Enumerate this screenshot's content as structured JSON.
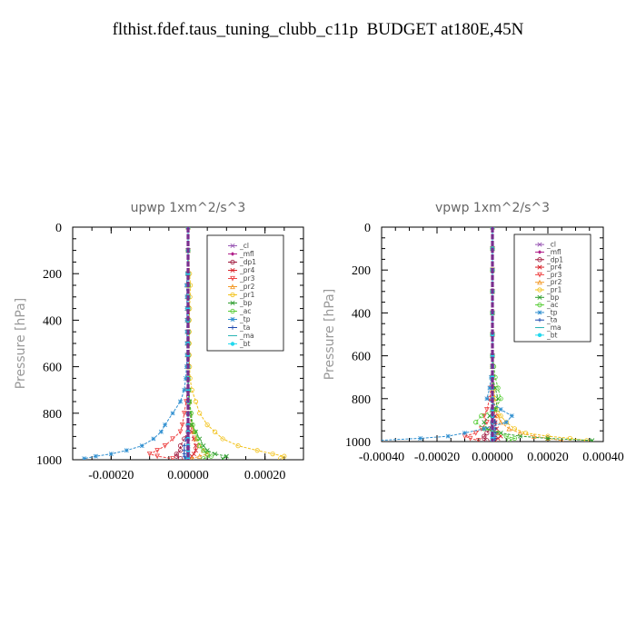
{
  "title": "flthist.fdef.taus_tuning_clubb_c11p  BUDGET at180E,45N",
  "ylabel": "Pressure  [hPa]",
  "legend_entries": [
    {
      "name": "_cl",
      "color": "#9a59b5",
      "marker": "x"
    },
    {
      "name": "_mfl",
      "color": "#b01f8a",
      "marker": "diamond"
    },
    {
      "name": "_dp1",
      "color": "#a0183c",
      "marker": "o"
    },
    {
      "name": "_pr4",
      "color": "#d8232a",
      "marker": "x"
    },
    {
      "name": "_pr3",
      "color": "#ee4444",
      "marker": "tri-down"
    },
    {
      "name": "_pr2",
      "color": "#f39a2a",
      "marker": "tri-up"
    },
    {
      "name": "_pr1",
      "color": "#f2c21b",
      "marker": "o"
    },
    {
      "name": "_bp",
      "color": "#2e9d2e",
      "marker": "x"
    },
    {
      "name": "_ac",
      "color": "#55cc33",
      "marker": "o"
    },
    {
      "name": "_tp",
      "color": "#2f8fd0",
      "marker": "star"
    },
    {
      "name": "_ta",
      "color": "#1f4bb0",
      "marker": "plus"
    },
    {
      "name": "_ma",
      "color": "#2bb5b5",
      "marker": "dash"
    },
    {
      "name": "_bt",
      "color": "#22d8ee",
      "marker": "dot"
    }
  ],
  "chart_data": [
    {
      "type": "line",
      "title": "upwp   1xm^2/s^3",
      "ylabel": "Pressure  [hPa]",
      "xlim": [
        -0.0003,
        0.0003
      ],
      "ylim": [
        1000,
        0
      ],
      "xticks": [
        -0.0002,
        0.0,
        0.0002
      ],
      "xticklabels": [
        "-0.00020",
        "0.00000",
        "0.00020"
      ],
      "yticks": [
        0,
        200,
        400,
        600,
        800,
        1000
      ],
      "yticklabels": [
        "0",
        "200",
        "400",
        "600",
        "800",
        "1000"
      ],
      "legend_position": "top-right",
      "y": [
        0,
        100,
        200,
        250,
        300,
        350,
        400,
        450,
        500,
        550,
        600,
        650,
        700,
        750,
        800,
        850,
        880,
        910,
        940,
        960,
        975,
        985,
        995
      ],
      "series": [
        {
          "name": "_cl",
          "values": [
            0,
            0,
            0,
            0,
            0,
            0,
            0,
            0,
            0,
            0,
            0,
            0,
            0,
            0,
            0,
            0,
            0,
            0,
            0,
            0,
            0,
            0,
            0
          ]
        },
        {
          "name": "_mfl",
          "values": [
            0,
            0,
            0,
            0,
            0,
            0,
            0,
            0,
            0,
            0,
            0,
            0,
            0,
            0,
            0,
            0,
            0,
            0,
            0,
            0,
            0,
            0,
            0
          ]
        },
        {
          "name": "_dp1",
          "values": [
            0,
            0,
            0,
            0,
            0,
            0,
            0,
            0,
            0,
            0,
            0,
            0,
            0,
            0,
            0,
            0,
            0,
            -1e-05,
            -2e-05,
            -2e-05,
            -3e-05,
            -3e-05,
            -2e-05
          ]
        },
        {
          "name": "_pr4",
          "values": [
            0,
            0,
            0,
            0,
            0,
            0,
            0,
            0,
            0,
            0,
            0,
            0,
            2e-06,
            4e-06,
            6e-06,
            8e-06,
            1e-05,
            1.5e-05,
            2e-05,
            2e-05,
            1.5e-05,
            1e-05,
            5e-06
          ]
        },
        {
          "name": "_pr3",
          "values": [
            0,
            0,
            0,
            0,
            0,
            0,
            0,
            0,
            0,
            0,
            0,
            0,
            -2e-06,
            -5e-06,
            -1e-05,
            -1.5e-05,
            -2e-05,
            -4e-05,
            -6e-05,
            -8e-05,
            -0.0001,
            -8e-05,
            -4e-05
          ]
        },
        {
          "name": "_pr2",
          "values": [
            0,
            0,
            0,
            0,
            0,
            0,
            0,
            0,
            0,
            0,
            0,
            0,
            2e-06,
            4e-06,
            6e-06,
            1e-05,
            1.5e-05,
            2e-05,
            3e-05,
            4e-05,
            5e-05,
            3e-05,
            1e-05
          ]
        },
        {
          "name": "_pr1",
          "values": [
            0,
            0,
            4e-06,
            6e-06,
            5e-06,
            4e-06,
            3e-06,
            3e-06,
            3e-06,
            3e-06,
            4e-06,
            5e-06,
            1e-05,
            2e-05,
            3e-05,
            5e-05,
            7e-05,
            9e-05,
            0.00013,
            0.00018,
            0.00022,
            0.00025,
            0.00024
          ]
        },
        {
          "name": "_bp",
          "values": [
            0,
            0,
            0,
            0,
            0,
            0,
            0,
            0,
            0,
            0,
            0,
            0,
            2e-06,
            4e-06,
            6e-06,
            1e-05,
            2e-05,
            3e-05,
            4e-05,
            5e-05,
            7e-05,
            0.0001,
            9e-05
          ]
        },
        {
          "name": "_ac",
          "values": [
            0,
            0,
            0,
            0,
            0,
            0,
            0,
            0,
            0,
            0,
            0,
            0,
            2e-06,
            4e-06,
            8e-06,
            1.2e-05,
            1.8e-05,
            2.5e-05,
            3e-05,
            4e-05,
            5e-05,
            6e-05,
            4e-05
          ]
        },
        {
          "name": "_tp",
          "values": [
            0,
            0,
            -2e-06,
            -4e-06,
            -3e-06,
            -3e-06,
            -3e-06,
            -3e-06,
            -3e-06,
            -3e-06,
            -4e-06,
            -6e-06,
            -1e-05,
            -2e-05,
            -4e-05,
            -6e-05,
            -7e-05,
            -9e-05,
            -0.00012,
            -0.00016,
            -0.0002,
            -0.00024,
            -0.00027
          ]
        },
        {
          "name": "_ta",
          "values": [
            0,
            0,
            0,
            0,
            0,
            0,
            0,
            0,
            0,
            0,
            0,
            0,
            0,
            0,
            0,
            0,
            0,
            -5e-06,
            -1e-05,
            -1e-05,
            -1e-05,
            -1e-05,
            -5e-06
          ]
        },
        {
          "name": "_ma",
          "values": [
            0,
            0,
            0,
            0,
            0,
            0,
            0,
            0,
            0,
            0,
            0,
            0,
            0,
            0,
            0,
            0,
            0,
            0,
            0,
            0,
            0,
            0,
            0
          ]
        },
        {
          "name": "_bt",
          "values": [
            0,
            0,
            0,
            0,
            0,
            0,
            0,
            0,
            0,
            0,
            0,
            0,
            0,
            0,
            0,
            0,
            0,
            0,
            0,
            0,
            0,
            0,
            0
          ]
        }
      ]
    },
    {
      "type": "line",
      "title": "vpwp   1xm^2/s^3",
      "ylabel": "Pressure  [hPa]",
      "xlim": [
        -0.0004,
        0.0004
      ],
      "ylim": [
        1000,
        0
      ],
      "xticks": [
        -0.0004,
        -0.0002,
        0.0,
        0.0002,
        0.0004
      ],
      "xticklabels": [
        "-0.00040",
        "-0.00020",
        "0.00000",
        "0.00020",
        "0.00040"
      ],
      "yticks": [
        0,
        200,
        400,
        600,
        800,
        1000
      ],
      "yticklabels": [
        "0",
        "200",
        "400",
        "600",
        "800",
        "1000"
      ],
      "legend_position": "top-right",
      "y": [
        0,
        100,
        200,
        300,
        400,
        500,
        600,
        650,
        700,
        750,
        800,
        850,
        880,
        910,
        940,
        960,
        975,
        985,
        995
      ],
      "series": [
        {
          "name": "_cl",
          "values": [
            0,
            0,
            0,
            0,
            0,
            0,
            0,
            0,
            0,
            0,
            0,
            0,
            0,
            0,
            0,
            0,
            0,
            0,
            0
          ]
        },
        {
          "name": "_mfl",
          "values": [
            0,
            0,
            0,
            0,
            0,
            0,
            0,
            0,
            0,
            0,
            0,
            0,
            0,
            0,
            0,
            0,
            0,
            0,
            0
          ]
        },
        {
          "name": "_dp1",
          "values": [
            0,
            0,
            0,
            0,
            0,
            0,
            0,
            0,
            0,
            0,
            0,
            0,
            0,
            0,
            -1e-05,
            -2e-05,
            -3e-05,
            -3e-05,
            -2e-05
          ]
        },
        {
          "name": "_pr4",
          "values": [
            0,
            0,
            0,
            0,
            0,
            0,
            0,
            0,
            0,
            0,
            0,
            5e-06,
            1e-05,
            1e-05,
            1.5e-05,
            2e-05,
            3e-05,
            2e-05,
            1e-05
          ]
        },
        {
          "name": "_pr3",
          "values": [
            0,
            0,
            0,
            0,
            0,
            0,
            0,
            0,
            0,
            -5e-06,
            -1e-05,
            -2e-05,
            -3e-05,
            -2e-05,
            -4e-05,
            -6e-05,
            -0.0001,
            -8e-05,
            -5e-05
          ]
        },
        {
          "name": "_pr2",
          "values": [
            0,
            0,
            0,
            0,
            0,
            0,
            0,
            0,
            0,
            3e-06,
            5e-06,
            1e-05,
            2e-05,
            3e-05,
            6e-05,
            0.0001,
            0.00015,
            0.0002,
            0.00025
          ]
        },
        {
          "name": "_pr1",
          "values": [
            0,
            0,
            0,
            0,
            0,
            0,
            0,
            0,
            0,
            5e-06,
            1e-05,
            2e-05,
            3e-05,
            5e-05,
            8e-05,
            0.00012,
            0.0002,
            0.00028,
            0.00034
          ]
        },
        {
          "name": "_bp",
          "values": [
            0,
            0,
            0,
            0,
            0,
            0,
            0,
            0,
            0,
            1e-05,
            2e-05,
            1e-05,
            -1e-05,
            -3e-05,
            -2e-05,
            3e-05,
            0.0001,
            0.0002,
            0.00036
          ]
        },
        {
          "name": "_ac",
          "values": [
            0,
            0,
            0,
            0,
            0,
            0,
            0,
            5e-06,
            1e-05,
            2e-05,
            3e-05,
            1e-05,
            -4e-05,
            -6e-05,
            -3e-05,
            2e-05,
            5e-05,
            8e-05,
            6e-05
          ]
        },
        {
          "name": "_tp",
          "values": [
            0,
            0,
            0,
            0,
            0,
            0,
            0,
            0,
            -5e-06,
            -1e-05,
            -2e-05,
            3e-05,
            7e-05,
            5e-05,
            -3e-05,
            -0.0001,
            -0.00016,
            -0.00026,
            -0.00042
          ]
        },
        {
          "name": "_ta",
          "values": [
            0,
            0,
            0,
            0,
            0,
            0,
            0,
            0,
            0,
            0,
            0,
            0,
            5e-06,
            1e-05,
            1e-05,
            1e-05,
            1e-05,
            1e-05,
            5e-06
          ]
        },
        {
          "name": "_ma",
          "values": [
            0,
            0,
            0,
            0,
            0,
            0,
            0,
            0,
            0,
            0,
            0,
            0,
            0,
            0,
            0,
            0,
            0,
            0,
            0
          ]
        },
        {
          "name": "_bt",
          "values": [
            0,
            0,
            0,
            0,
            0,
            0,
            0,
            0,
            0,
            0,
            0,
            0,
            0,
            0,
            0,
            0,
            0,
            0,
            0
          ]
        }
      ]
    }
  ]
}
